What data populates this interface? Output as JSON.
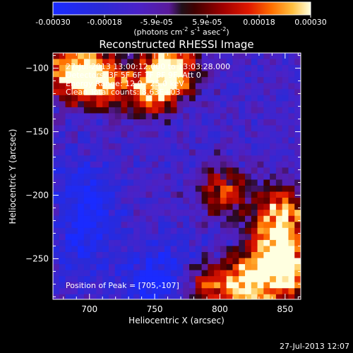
{
  "chart_data": {
    "type": "heatmap",
    "title": "Reconstructed RHESSI Image",
    "xlabel": "Heliocentric X (arcsec)",
    "ylabel": "Heliocentric Y (arcsec)",
    "xlim": [
      672,
      862
    ],
    "ylim": [
      -282,
      -88
    ],
    "x_ticks": [
      700,
      750,
      800,
      850
    ],
    "x_tick_labels": [
      "700",
      "750",
      "800",
      "850"
    ],
    "y_ticks": [
      -100,
      -150,
      -200,
      -250
    ],
    "y_tick_labels": [
      "−100",
      "−150",
      "−200",
      "−250"
    ],
    "colorbar": {
      "range": [
        -0.0003,
        0.0003
      ],
      "ticks": [
        -0.0003,
        -0.00018,
        -5.9e-05,
        5.9e-05,
        0.00018,
        0.0003
      ],
      "tick_labels": [
        "-0.00030",
        "-0.00018",
        "-5.9e-05",
        "5.9e-05",
        "0.00018",
        "0.00030"
      ],
      "units_base": "(photons cm",
      "units_exp1": "-2",
      "units_mid": " s",
      "units_exp2": "-1",
      "units_mid2": " asec",
      "units_exp3": "-2",
      "units_end": ")"
    },
    "annotations": [
      "27-Jul-2013 13:00:12.000 to 13:03:28.000",
      "Detectors: 3F 5F 6F 7F 8F 9F, Att 0",
      "Energy Range: 12.0 - 25.0 keV",
      "Clean    Total counts: 8.63E+03"
    ],
    "peak_label": "Position of Peak = [705,-107]",
    "peak_position": [
      705,
      -107
    ],
    "hot_regions": [
      {
        "x": 683,
        "y": -100,
        "value": 0.00027
      },
      {
        "x": 760,
        "y": -98,
        "value": 0.00029
      },
      {
        "x": 745,
        "y": -115,
        "value": 0.00022
      },
      {
        "x": 705,
        "y": -107,
        "value": 0.0003
      },
      {
        "x": 845,
        "y": -212,
        "value": 0.00024
      },
      {
        "x": 838,
        "y": -238,
        "value": 0.00018
      },
      {
        "x": 820,
        "y": -268,
        "value": 0.00028
      },
      {
        "x": 850,
        "y": -258,
        "value": 0.0003
      },
      {
        "x": 790,
        "y": -270,
        "value": 0.00014
      },
      {
        "x": 800,
        "y": -195,
        "value": 0.00016
      }
    ],
    "cold_regions": [
      {
        "x": 690,
        "y": -185,
        "value": -0.00022
      },
      {
        "x": 700,
        "y": -215,
        "value": -0.00025
      },
      {
        "x": 690,
        "y": -245,
        "value": -0.00022
      },
      {
        "x": 745,
        "y": -268,
        "value": -0.00028
      },
      {
        "x": 765,
        "y": -248,
        "value": -0.00018
      }
    ]
  },
  "footer": {
    "timestamp": "27-Jul-2013 12:07"
  },
  "colors": {
    "background": "#000000",
    "foreground": "#ffffff"
  }
}
